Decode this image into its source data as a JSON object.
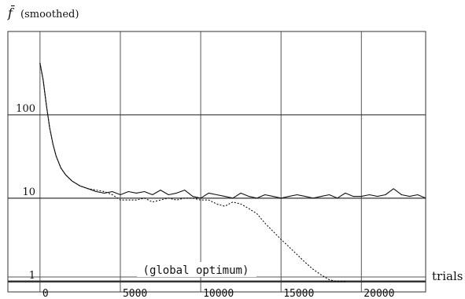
{
  "chart_data": {
    "type": "line",
    "ylabel_symbol": "f̄",
    "ylabel_note": "(smoothed)",
    "xlabel": "trials",
    "yscale": "log",
    "xlim": [
      -2000,
      24000
    ],
    "ylim": [
      0.75,
      1000
    ],
    "xticks": [
      0,
      5000,
      10000,
      15000,
      20000
    ],
    "xtick_labels": [
      "0",
      "5000",
      "10000",
      "15000",
      "20000"
    ],
    "yticks": [
      1,
      10,
      100
    ],
    "ytick_labels": [
      "1",
      "10",
      "100"
    ],
    "grid": true,
    "annotation": {
      "text": "(global optimum)",
      "x": 9700,
      "y": 1
    },
    "series": [
      {
        "style": "solid",
        "x": [
          0,
          200,
          400,
          600,
          800,
          1000,
          1300,
          1600,
          2000,
          2500,
          3000,
          3500,
          4000,
          4500,
          5000,
          5500,
          6000,
          6500,
          7000,
          7500,
          8000,
          8500,
          9000,
          9500,
          10000,
          10500,
          11000,
          11500,
          12000,
          12500,
          13000,
          13500,
          14000,
          14500,
          15000,
          15500,
          16000,
          16500,
          17000,
          17500,
          18000,
          18500,
          19000,
          19500,
          20000,
          20500,
          21000,
          21500,
          22000,
          22500,
          23000,
          23500,
          24000
        ],
        "y": [
          420,
          260,
          130,
          70,
          45,
          32,
          23,
          19,
          16,
          14,
          13,
          12,
          11.5,
          12,
          11,
          12,
          11.5,
          12,
          11,
          12.5,
          11,
          11.5,
          12.5,
          10.5,
          10,
          11.5,
          11,
          10.5,
          10,
          11.5,
          10.5,
          10,
          11,
          10.5,
          10,
          10.5,
          11,
          10.5,
          10,
          10.5,
          11,
          10,
          11.5,
          10.5,
          10.5,
          11,
          10.5,
          11,
          13,
          11,
          10.5,
          11,
          10
        ]
      },
      {
        "style": "dotted",
        "x": [
          0,
          200,
          400,
          600,
          800,
          1000,
          1300,
          1600,
          2000,
          2500,
          3000,
          3500,
          4000,
          4500,
          5000,
          5500,
          6000,
          6500,
          7000,
          7500,
          8000,
          8500,
          9000,
          9500,
          10000,
          10500,
          11000,
          11500,
          12000,
          12500,
          13000,
          13500,
          14000,
          14500,
          15000,
          15500,
          16000,
          16500,
          17000,
          17500,
          18000,
          18500,
          19000
        ],
        "y": [
          420,
          260,
          130,
          70,
          45,
          32,
          23,
          19,
          16,
          14,
          13,
          12.5,
          12,
          11,
          9.5,
          9.5,
          9.5,
          10,
          9,
          9.5,
          10,
          9.5,
          10,
          10,
          9.5,
          9.5,
          8.5,
          8,
          9,
          8.5,
          7.5,
          6.5,
          5,
          4,
          3.2,
          2.6,
          2.1,
          1.7,
          1.4,
          1.2,
          1.05,
          1.0,
          1.0
        ]
      }
    ]
  }
}
